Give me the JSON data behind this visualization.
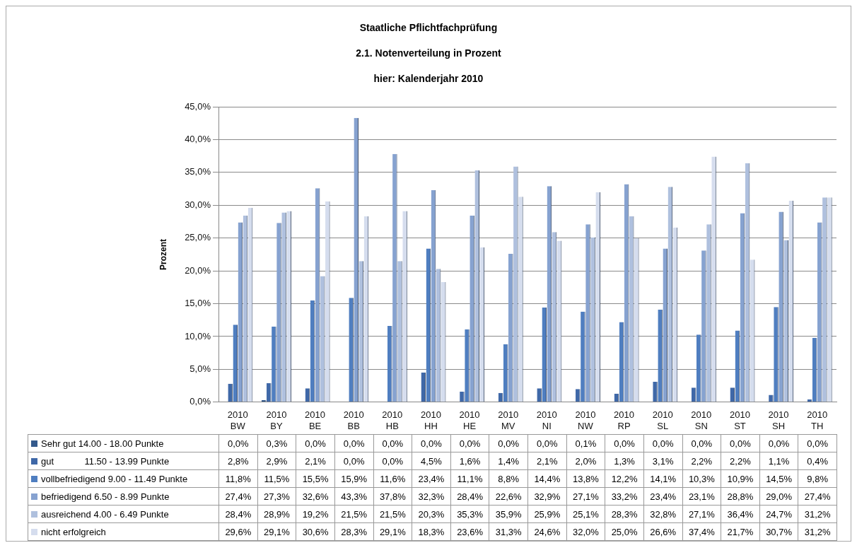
{
  "chart_data": {
    "type": "bar",
    "title": "Staatliche Pflichtfachprüfung",
    "subtitle": "2.1. Notenverteilung in Prozent",
    "annotations": [
      "hier: Kalenderjahr 2010"
    ],
    "ylabel": "Prozent",
    "categories": [
      "2010\nBW",
      "2010\nBY",
      "2010\nBE",
      "2010\nBB",
      "2010\nHB",
      "2010\nHH",
      "2010\nHE",
      "2010\nMV",
      "2010\nNI",
      "2010\nNW",
      "2010\nRP",
      "2010\nSL",
      "2010\nSN",
      "2010\nST",
      "2010\nSH",
      "2010\nTH"
    ],
    "series": [
      {
        "name": "Sehr gut 14.00 - 18.00 Punkte",
        "color": "#345a8c",
        "values": [
          0.0,
          0.3,
          0.0,
          0.0,
          0.0,
          0.0,
          0.0,
          0.0,
          0.0,
          0.1,
          0.0,
          0.0,
          0.0,
          0.0,
          0.0,
          0.0
        ],
        "value_labels": [
          "0,0%",
          "0,3%",
          "0,0%",
          "0,0%",
          "0,0%",
          "0,0%",
          "0,0%",
          "0,0%",
          "0,0%",
          "0,1%",
          "0,0%",
          "0,0%",
          "0,0%",
          "0,0%",
          "0,0%",
          "0,0%"
        ]
      },
      {
        "name": "gut            11.50 - 13.99 Punkte",
        "color": "#3f68a8",
        "values": [
          2.8,
          2.9,
          2.1,
          0.0,
          0.0,
          4.5,
          1.6,
          1.4,
          2.1,
          2.0,
          1.3,
          3.1,
          2.2,
          2.2,
          1.1,
          0.4
        ],
        "value_labels": [
          "2,8%",
          "2,9%",
          "2,1%",
          "0,0%",
          "0,0%",
          "4,5%",
          "1,6%",
          "1,4%",
          "2,1%",
          "2,0%",
          "1,3%",
          "3,1%",
          "2,2%",
          "2,2%",
          "1,1%",
          "0,4%"
        ]
      },
      {
        "name": "vollbefriedigend 9.00 - 11.49 Punkte",
        "color": "#4f7ec0",
        "values": [
          11.8,
          11.5,
          15.5,
          15.9,
          11.6,
          23.4,
          11.1,
          8.8,
          14.4,
          13.8,
          12.2,
          14.1,
          10.3,
          10.9,
          14.5,
          9.8
        ],
        "value_labels": [
          "11,8%",
          "11,5%",
          "15,5%",
          "15,9%",
          "11,6%",
          "23,4%",
          "11,1%",
          "8,8%",
          "14,4%",
          "13,8%",
          "12,2%",
          "14,1%",
          "10,3%",
          "10,9%",
          "14,5%",
          "9,8%"
        ]
      },
      {
        "name": "befriedigend 6.50 - 8.99 Punkte",
        "color": "#86a2d0",
        "values": [
          27.4,
          27.3,
          32.6,
          43.3,
          37.8,
          32.3,
          28.4,
          22.6,
          32.9,
          27.1,
          33.2,
          23.4,
          23.1,
          28.8,
          29.0,
          27.4
        ],
        "value_labels": [
          "27,4%",
          "27,3%",
          "32,6%",
          "43,3%",
          "37,8%",
          "32,3%",
          "28,4%",
          "22,6%",
          "32,9%",
          "27,1%",
          "33,2%",
          "23,4%",
          "23,1%",
          "28,8%",
          "29,0%",
          "27,4%"
        ]
      },
      {
        "name": "ausreichend 4.00 - 6.49 Punkte",
        "color": "#afc0de",
        "values": [
          28.4,
          28.9,
          19.2,
          21.5,
          21.5,
          20.3,
          35.3,
          35.9,
          25.9,
          25.1,
          28.3,
          32.8,
          27.1,
          36.4,
          24.7,
          31.2
        ],
        "value_labels": [
          "28,4%",
          "28,9%",
          "19,2%",
          "21,5%",
          "21,5%",
          "20,3%",
          "35,3%",
          "35,9%",
          "25,9%",
          "25,1%",
          "28,3%",
          "32,8%",
          "27,1%",
          "36,4%",
          "24,7%",
          "31,2%"
        ]
      },
      {
        "name": "nicht erfolgreich",
        "color": "#d5ddee",
        "values": [
          29.6,
          29.1,
          30.6,
          28.3,
          29.1,
          18.3,
          23.6,
          31.3,
          24.6,
          32.0,
          25.0,
          26.6,
          37.4,
          21.7,
          30.7,
          31.2
        ],
        "value_labels": [
          "29,6%",
          "29,1%",
          "30,6%",
          "28,3%",
          "29,1%",
          "18,3%",
          "23,6%",
          "31,3%",
          "24,6%",
          "32,0%",
          "25,0%",
          "26,6%",
          "37,4%",
          "21,7%",
          "30,7%",
          "31,2%"
        ]
      }
    ],
    "ylim": [
      0,
      45
    ],
    "yticks": [
      {
        "value": 0,
        "label": "0,0%"
      },
      {
        "value": 5,
        "label": "5,0%"
      },
      {
        "value": 10,
        "label": "10,0%"
      },
      {
        "value": 15,
        "label": "15,0%"
      },
      {
        "value": 20,
        "label": "20,0%"
      },
      {
        "value": 25,
        "label": "25,0%"
      },
      {
        "value": 30,
        "label": "30,0%"
      },
      {
        "value": 35,
        "label": "35,0%"
      },
      {
        "value": 40,
        "label": "40,0%"
      },
      {
        "value": 45,
        "label": "45,0%"
      }
    ],
    "grid": "y",
    "legend": "bottom left"
  }
}
